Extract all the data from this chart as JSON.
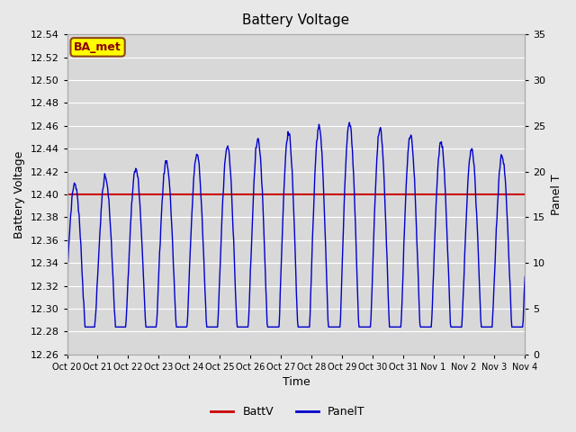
{
  "title": "Battery Voltage",
  "xlabel": "Time",
  "ylabel_left": "Battery Voltage",
  "ylabel_right": "Panel T",
  "ylim_left": [
    12.26,
    12.54
  ],
  "ylim_right": [
    0,
    35
  ],
  "yticks_left": [
    12.26,
    12.28,
    12.3,
    12.32,
    12.34,
    12.36,
    12.38,
    12.4,
    12.42,
    12.44,
    12.46,
    12.48,
    12.5,
    12.52,
    12.54
  ],
  "yticks_right": [
    0,
    5,
    10,
    15,
    20,
    25,
    30,
    35
  ],
  "xtick_labels": [
    "Oct 20",
    "Oct 21",
    "Oct 22",
    "Oct 23",
    "Oct 24",
    "Oct 25",
    "Oct 26",
    "Oct 27",
    "Oct 28",
    "Oct 29",
    "Oct 30",
    "Oct 31",
    "Nov 1",
    "Nov 2",
    "Nov 3",
    "Nov 4"
  ],
  "n_days": 15,
  "batt_voltage": 12.4,
  "panel_color": "#0000cc",
  "batt_color": "#cc0000",
  "bg_color": "#e8e8e8",
  "plot_bg_color": "#d8d8d8",
  "grid_color": "#ffffff",
  "annotation_text": "BA_met",
  "annotation_bg": "#ffff00",
  "annotation_border": "#8b4513",
  "annotation_text_color": "#8b0000"
}
